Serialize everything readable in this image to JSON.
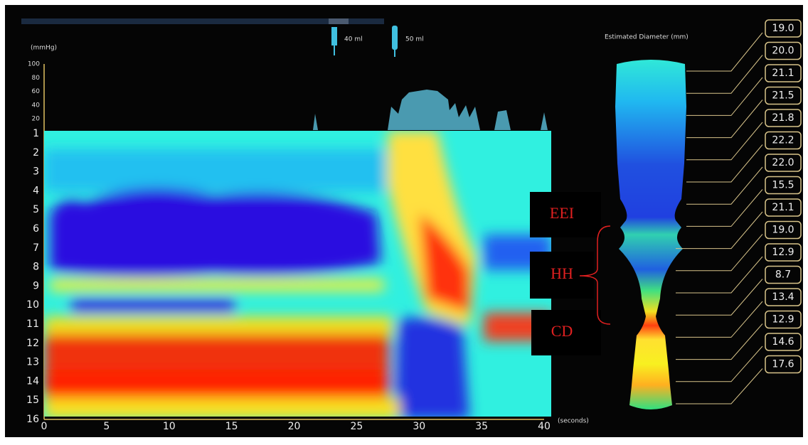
{
  "pressure_axis": {
    "unit": "(mmHg)",
    "ticks": [
      100,
      80,
      60,
      40,
      20
    ]
  },
  "channels": [
    1,
    2,
    3,
    4,
    5,
    6,
    7,
    8,
    9,
    10,
    11,
    12,
    13,
    14,
    15,
    16
  ],
  "time_axis": {
    "ticks": [
      0,
      5,
      10,
      15,
      20,
      25,
      30,
      35,
      40
    ],
    "unit": "(seconds)"
  },
  "volumes": [
    "40 ml",
    "50 ml"
  ],
  "diameter": {
    "title": "Estimated Diameter (mm)",
    "values": [
      "19.0",
      "20.0",
      "21.1",
      "21.5",
      "21.8",
      "22.2",
      "22.0",
      "15.5",
      "21.1",
      "19.0",
      "12.9",
      "8.7",
      "13.4",
      "12.9",
      "14.6",
      "17.6"
    ]
  },
  "annotations": [
    "EEI",
    "HH",
    "CD"
  ]
}
